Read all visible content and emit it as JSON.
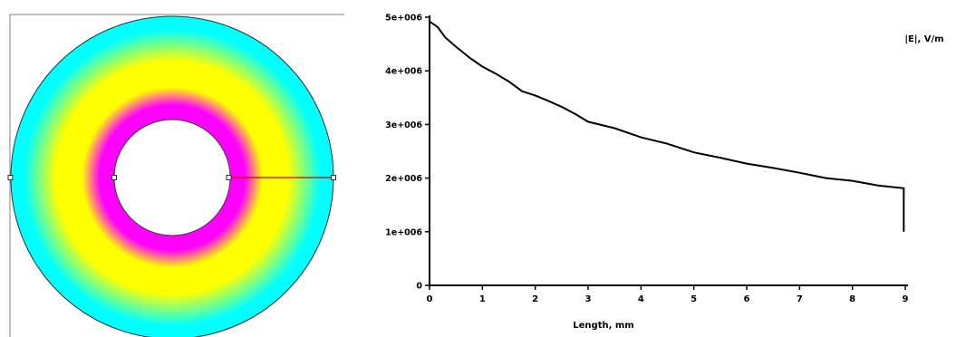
{
  "chart_data": [
    {
      "type": "heatmap",
      "description_kind": "field-map",
      "colors": {
        "inner": "#ff00ff",
        "mid": "#ffff00",
        "outer": "#00ffff",
        "cut_line": "#cc0000"
      }
    },
    {
      "type": "line",
      "xlabel": "Length, mm",
      "ylabel": "|E|, V/m",
      "xlim": [
        0,
        9
      ],
      "ylim": [
        0,
        5000000
      ],
      "x_ticks": [
        0,
        1,
        2,
        3,
        4,
        5,
        6,
        7,
        8,
        9
      ],
      "x_tick_labels": [
        "0",
        "1",
        "2",
        "3",
        "4",
        "5",
        "6",
        "7",
        "8",
        "9"
      ],
      "y_ticks": [
        0,
        1000000,
        2000000,
        3000000,
        4000000,
        5000000
      ],
      "y_tick_labels": [
        "0",
        "1e+006",
        "2e+006",
        "3e+006",
        "4e+006",
        "5e+006"
      ],
      "series": [
        {
          "x": [
            0,
            0.15,
            0.3,
            0.5,
            0.75,
            1.0,
            1.25,
            1.5,
            1.75,
            2.0,
            2.25,
            2.5,
            2.75,
            3.0,
            3.5,
            4.0,
            4.5,
            5.0,
            5.5,
            6.0,
            6.5,
            7.0,
            7.5,
            8.0,
            8.5,
            8.97,
            8.97
          ],
          "y": [
            4920000,
            4820000,
            4620000,
            4450000,
            4250000,
            4080000,
            3950000,
            3800000,
            3620000,
            3540000,
            3440000,
            3330000,
            3200000,
            3050000,
            2930000,
            2760000,
            2640000,
            2480000,
            2380000,
            2270000,
            2190000,
            2100000,
            2000000,
            1950000,
            1860000,
            1810000,
            1000000
          ]
        }
      ],
      "colors": {
        "line": "#000000",
        "axis": "#000000"
      }
    }
  ]
}
